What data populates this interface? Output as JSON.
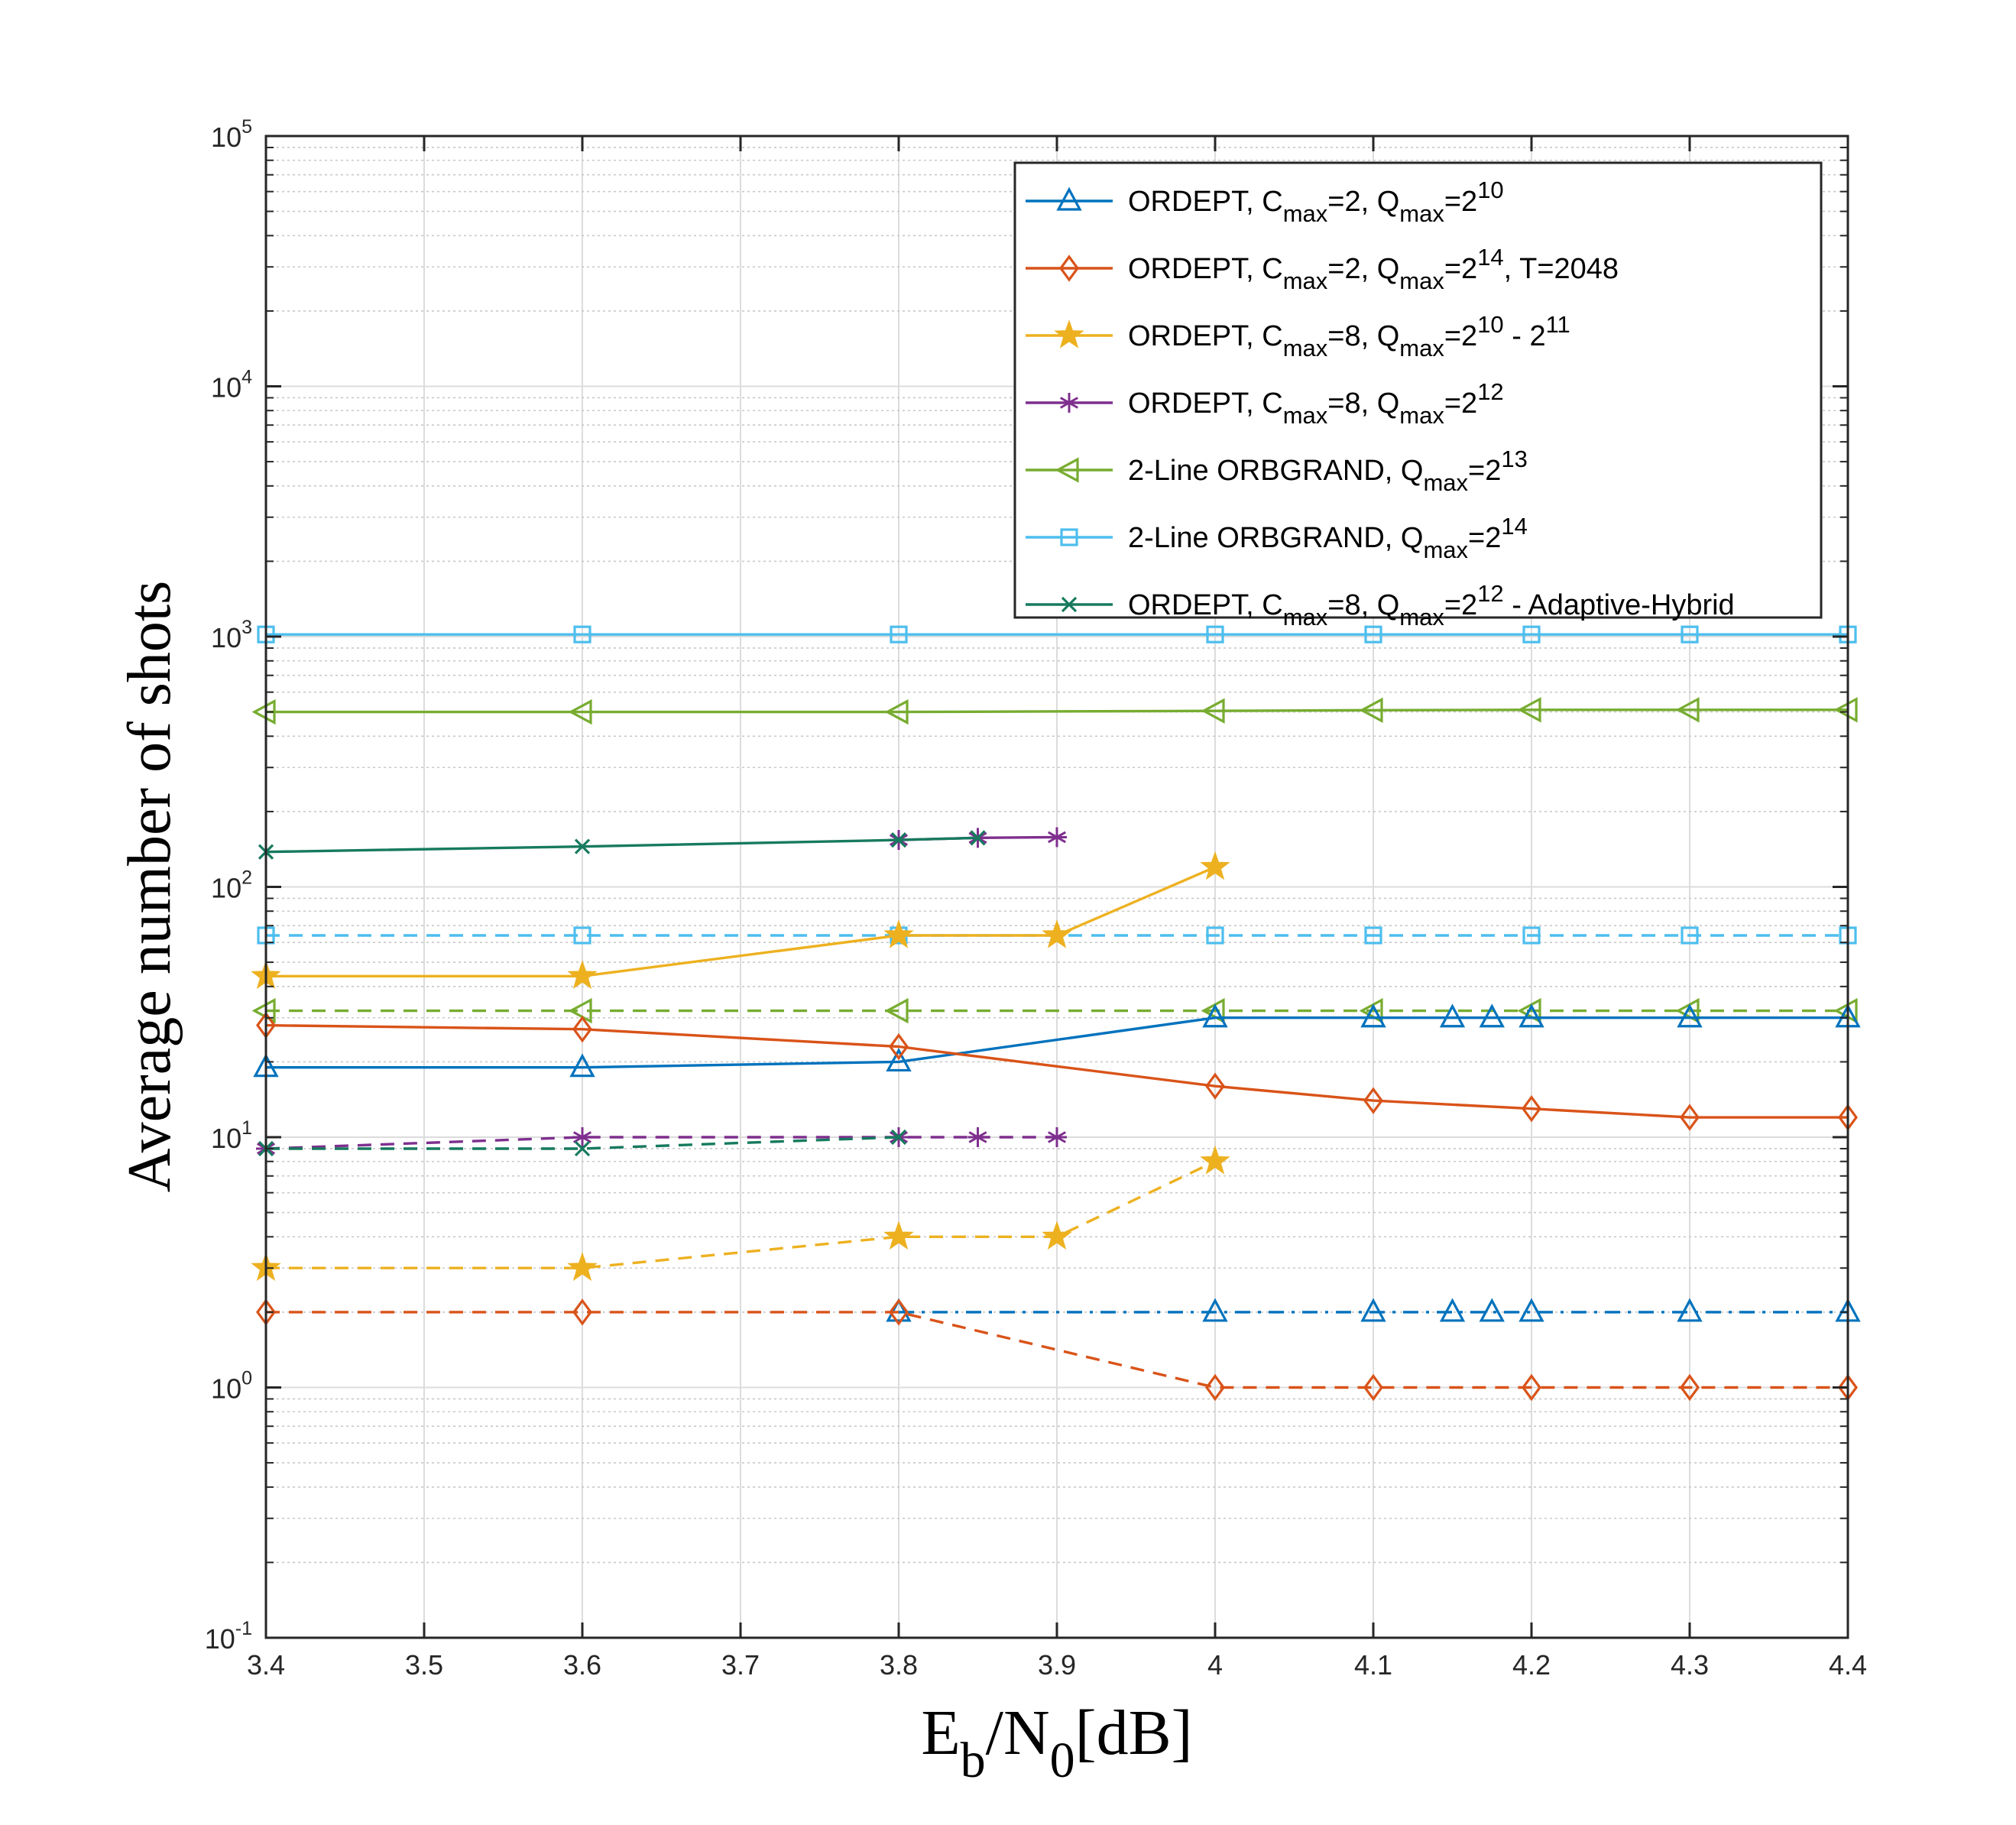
{
  "chart_data": {
    "type": "line",
    "xlabel": {
      "main": "E",
      "sub1": "b",
      "mid": "/N",
      "sub2": "0",
      "tail": "[dB]"
    },
    "ylabel": "Average number of shots",
    "xlim": [
      3.4,
      4.4
    ],
    "ylim_log10": [
      -1,
      5
    ],
    "y_scale": "log",
    "grid": true,
    "legend_position": "top-right",
    "x_ticks": [
      "3.4",
      "3.5",
      "3.6",
      "3.7",
      "3.8",
      "3.9",
      "4",
      "4.1",
      "4.2",
      "4.3",
      "4.4"
    ],
    "x_tick_values": [
      3.4,
      3.5,
      3.6,
      3.7,
      3.8,
      3.9,
      4.0,
      4.1,
      4.2,
      4.3,
      4.4
    ],
    "y_ticks": [
      {
        "base": "10",
        "exp": "-1",
        "value": 0.1
      },
      {
        "base": "10",
        "exp": "0",
        "value": 1
      },
      {
        "base": "10",
        "exp": "1",
        "value": 10
      },
      {
        "base": "10",
        "exp": "2",
        "value": 100
      },
      {
        "base": "10",
        "exp": "3",
        "value": 1000
      },
      {
        "base": "10",
        "exp": "4",
        "value": 10000
      },
      {
        "base": "10",
        "exp": "5",
        "value": 100000
      }
    ],
    "series": [
      {
        "id": "ordept-c2-q10",
        "color": "#0072BD",
        "marker": "triangle",
        "legend": true,
        "legend_parts": [
          [
            "ORDEPT, C",
            ""
          ],
          [
            "max",
            "sub"
          ],
          [
            "=2, Q",
            ""
          ],
          [
            "max",
            "sub"
          ],
          [
            "=2",
            ""
          ],
          [
            "10",
            "sup"
          ]
        ],
        "solid_x": [
          3.4,
          3.6,
          3.8,
          4.0,
          4.1,
          4.15,
          4.175,
          4.2,
          4.3,
          4.4
        ],
        "solid_y": [
          19,
          19,
          20,
          30,
          30,
          30,
          30,
          30,
          30,
          30
        ],
        "dashed_x": [
          3.8,
          4.0,
          4.1,
          4.15,
          4.175,
          4.2,
          4.3,
          4.4
        ],
        "dashed_y": [
          2,
          2,
          2,
          2,
          2,
          2,
          2,
          2
        ],
        "dashed_style": "dashdot"
      },
      {
        "id": "ordept-c2-q14-t2048",
        "color": "#D95319",
        "marker": "diamond",
        "legend": true,
        "legend_parts": [
          [
            "ORDEPT, C",
            ""
          ],
          [
            "max",
            "sub"
          ],
          [
            "=2, Q",
            ""
          ],
          [
            "max",
            "sub"
          ],
          [
            "=2",
            ""
          ],
          [
            "14",
            "sup"
          ],
          [
            ", T=2048",
            ""
          ]
        ],
        "solid_x": [
          3.4,
          3.6,
          3.8,
          4.0,
          4.1,
          4.2,
          4.3,
          4.4
        ],
        "solid_y": [
          28,
          27,
          23,
          16,
          14,
          13,
          12,
          12
        ],
        "dashed_x": [
          3.4,
          3.6,
          3.8,
          4.0,
          4.1,
          4.2,
          4.3,
          4.4
        ],
        "dashed_y": [
          2,
          2,
          2,
          1,
          1,
          1,
          1,
          1
        ],
        "dashed_style": "dash"
      },
      {
        "id": "ordept-c8-q10-11",
        "color": "#EDB120",
        "marker": "star",
        "legend": true,
        "legend_parts": [
          [
            "ORDEPT, C",
            ""
          ],
          [
            "max",
            "sub"
          ],
          [
            "=8, Q",
            ""
          ],
          [
            "max",
            "sub"
          ],
          [
            "=2",
            ""
          ],
          [
            "10",
            "sup"
          ],
          [
            " - 2",
            ""
          ],
          [
            "11",
            "sup"
          ]
        ],
        "solid_x": [
          3.4,
          3.6,
          3.8,
          3.9,
          4.0
        ],
        "solid_y": [
          44,
          44,
          64,
          64,
          120
        ],
        "dashed_x": [
          3.4,
          3.6,
          3.8,
          3.9,
          4.0
        ],
        "dashed_y": [
          3,
          3,
          4,
          4,
          8
        ],
        "dashed_style": "dash"
      },
      {
        "id": "ordept-c8-q12",
        "color": "#7E2F8E",
        "marker": "asterisk",
        "legend": true,
        "legend_parts": [
          [
            "ORDEPT, C",
            ""
          ],
          [
            "max",
            "sub"
          ],
          [
            "=8, Q",
            ""
          ],
          [
            "max",
            "sub"
          ],
          [
            "=2",
            ""
          ],
          [
            "12",
            "sup"
          ]
        ],
        "solid_x": [
          3.8,
          3.85,
          3.9
        ],
        "solid_y": [
          154,
          157,
          158
        ],
        "dashed_x": [
          3.4,
          3.6,
          3.8,
          3.85,
          3.9
        ],
        "dashed_y": [
          9,
          10,
          10,
          10,
          10
        ],
        "dashed_style": "dash"
      },
      {
        "id": "orbgrand-q13",
        "color": "#77AC30",
        "marker": "triangle-left",
        "legend": true,
        "legend_parts": [
          [
            "2-Line ORBGRAND, Q",
            ""
          ],
          [
            "max",
            "sub"
          ],
          [
            "=2",
            ""
          ],
          [
            "13",
            "sup"
          ]
        ],
        "solid_x": [
          3.4,
          3.6,
          3.8,
          4.0,
          4.1,
          4.2,
          4.3,
          4.4
        ],
        "solid_y": [
          500,
          500,
          500,
          505,
          508,
          510,
          510,
          510
        ],
        "dashed_x": [
          3.4,
          3.6,
          3.8,
          4.0,
          4.1,
          4.2,
          4.3,
          4.4
        ],
        "dashed_y": [
          32,
          32,
          32,
          32,
          32,
          32,
          32,
          32
        ],
        "dashed_style": "dash"
      },
      {
        "id": "orbgrand-q14",
        "color": "#4DBEEE",
        "marker": "square",
        "legend": true,
        "legend_parts": [
          [
            "2-Line ORBGRAND, Q",
            ""
          ],
          [
            "max",
            "sub"
          ],
          [
            "=2",
            ""
          ],
          [
            "14",
            "sup"
          ]
        ],
        "solid_x": [
          3.4,
          3.6,
          3.8,
          4.0,
          4.1,
          4.2,
          4.3,
          4.4
        ],
        "solid_y": [
          1020,
          1020,
          1020,
          1020,
          1020,
          1020,
          1020,
          1020
        ],
        "dashed_x": [
          3.4,
          3.6,
          3.8,
          4.0,
          4.1,
          4.2,
          4.3,
          4.4
        ],
        "dashed_y": [
          64,
          64,
          64,
          64,
          64,
          64,
          64,
          64
        ],
        "dashed_style": "dash"
      },
      {
        "id": "ordept-c8-q12-adaptive",
        "color": "#177A5E",
        "marker": "x",
        "legend": true,
        "legend_parts": [
          [
            "ORDEPT, C",
            ""
          ],
          [
            "max",
            "sub"
          ],
          [
            "=8, Q",
            ""
          ],
          [
            "max",
            "sub"
          ],
          [
            "=2",
            ""
          ],
          [
            "12",
            "sup"
          ],
          [
            " - Adaptive-Hybrid",
            ""
          ]
        ],
        "solid_x": [
          3.4,
          3.6,
          3.8,
          3.85
        ],
        "solid_y": [
          138,
          145,
          154,
          157
        ],
        "dashed_x": [
          3.4,
          3.6,
          3.8
        ],
        "dashed_y": [
          9,
          9,
          10
        ],
        "dashed_style": "dash"
      }
    ]
  }
}
